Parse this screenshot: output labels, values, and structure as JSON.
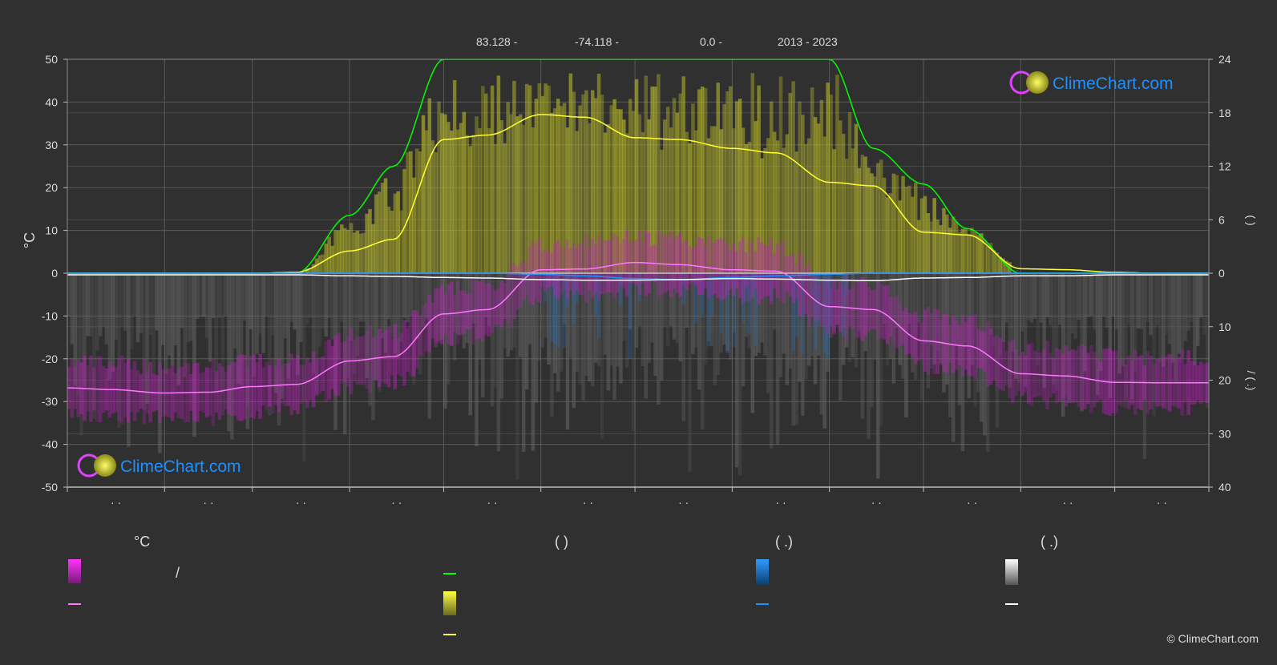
{
  "header": {
    "latitude": "83.128 -",
    "longitude": "-74.118 -",
    "elevation": "0.0 -",
    "period": "2013 - 2023"
  },
  "branding": {
    "logo_text": "ClimeChart.com",
    "copyright": "© ClimeChart.com"
  },
  "legend": {
    "temp_header": "°C",
    "sun_header": "(           )",
    "rain_header": "(    .)",
    "snow_header": "(    .)",
    "temp_range_label": "/"
  },
  "colors": {
    "background": "#303030",
    "temperature": "#ff77ff",
    "temperature_band": "#e020e0",
    "daylight": "#00ff00",
    "sunshine": "#ffff33",
    "sunshine_band": "#b8b82a",
    "rain": "#1e90ff",
    "snow": "#ffffff"
  },
  "chart_data": {
    "type": "line",
    "title": "",
    "xlabel": "",
    "ylabel_left": "°C",
    "ylabel_right_top": "(     )",
    "ylabel_right_bottom": "/ (   .)",
    "month_labels": [
      "· ·",
      "· ·",
      "· ·",
      "· ·",
      "· ·",
      "· ·",
      "· ·",
      "· ·",
      "· ·",
      "· ·",
      "· ·",
      "· ·"
    ],
    "y_left": {
      "min": -50,
      "max": 50,
      "ticks": [
        50,
        40,
        30,
        20,
        10,
        0,
        -10,
        -20,
        -30,
        -40,
        -50
      ]
    },
    "y_right_top": {
      "min": 0,
      "max": 24,
      "ticks": [
        24,
        18,
        12,
        6,
        0
      ]
    },
    "y_right_bottom": {
      "min": 0,
      "max": 40,
      "ticks": [
        0,
        10,
        20,
        30,
        40
      ]
    },
    "grid": true,
    "x_days": [
      1,
      15,
      32,
      46,
      60,
      74,
      91,
      105,
      121,
      135,
      152,
      166,
      182,
      196,
      213,
      227,
      244,
      258,
      274,
      288,
      305,
      319,
      335,
      349,
      365
    ],
    "series": [
      {
        "key": "temperature",
        "axis": "left",
        "values": [
          -26.8,
          -27.2,
          -28,
          -27.8,
          -26.5,
          -26,
          -20.5,
          -19.5,
          -9.5,
          -8.5,
          0.8,
          1,
          2.5,
          2,
          0.8,
          0.5,
          -7.8,
          -8.5,
          -15.8,
          -17,
          -23.5,
          -24,
          -25.5,
          -25.6,
          -25.6
        ]
      },
      {
        "key": "daylight",
        "axis": "right_top",
        "values": [
          0,
          0,
          0,
          0,
          0,
          0,
          6.5,
          12,
          24,
          24,
          24,
          24,
          24,
          24,
          24,
          24,
          24,
          14,
          10,
          5,
          0,
          0,
          0,
          0,
          0
        ]
      },
      {
        "key": "sunshine",
        "axis": "right_top",
        "values": [
          0,
          0,
          0,
          0,
          0,
          0.1,
          2.5,
          3.8,
          15,
          15.5,
          17.8,
          17.5,
          15.2,
          15,
          14,
          13.5,
          10.2,
          9.8,
          4.6,
          4.3,
          0.5,
          0.4,
          0.1,
          0,
          0
        ]
      },
      {
        "key": "rain",
        "axis": "right_bottom",
        "values": [
          0,
          0,
          0,
          0,
          0,
          0,
          0,
          0,
          0,
          0,
          0.2,
          0.5,
          1,
          1.2,
          0.8,
          0.5,
          0.2,
          0,
          0,
          0,
          0,
          0,
          0,
          0,
          0
        ]
      },
      {
        "key": "snow",
        "axis": "right_bottom",
        "values": [
          0.3,
          0.3,
          0.3,
          0.3,
          0.3,
          0.3,
          0.5,
          0.6,
          0.8,
          0.9,
          1.2,
          1.3,
          1.3,
          1.2,
          1,
          1.1,
          1.3,
          1.4,
          0.9,
          0.8,
          0.5,
          0.5,
          0.3,
          0.3,
          0.3
        ]
      }
    ]
  }
}
